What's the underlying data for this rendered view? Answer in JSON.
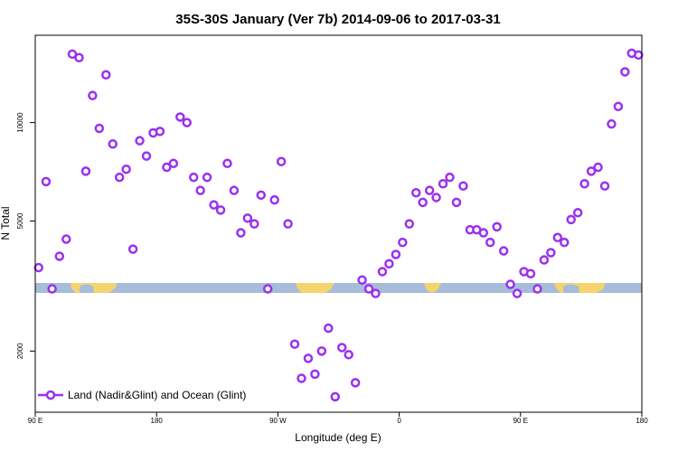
{
  "chart_data": {
    "type": "scatter",
    "title": "35S-30S January (Ver 7b)   2014-09-06 to 2017-03-31",
    "xlabel": "Longitude (deg E)",
    "ylabel": "N Total",
    "x_ticks": [
      {
        "value": 90,
        "label": "90 E"
      },
      {
        "value": 180,
        "label": "180"
      },
      {
        "value": 270,
        "label": "90 W"
      },
      {
        "value": 360,
        "label": "0"
      },
      {
        "value": 450,
        "label": "90 E"
      },
      {
        "value": 540,
        "label": "180"
      }
    ],
    "y_ticks": [
      {
        "value": 2000,
        "label": "2000"
      },
      {
        "value": 5000,
        "label": "5000"
      },
      {
        "value": 10000,
        "label": "10000"
      }
    ],
    "xlim": [
      90,
      540
    ],
    "ylim": [
      1300,
      18500
    ],
    "y_scale": "log",
    "legend": {
      "label": "Land (Nadir&Glint) and Ocean (Glint)",
      "position": "bottom-left"
    },
    "colors": {
      "marker": "#9b30f0",
      "ocean": "#a6bcd9",
      "land": "#f5d46e",
      "frame": "#000000"
    },
    "series": [
      {
        "name": "Land (Nadir&Glint) and Ocean (Glint)",
        "x": [
          92.5,
          98,
          102.5,
          108,
          113,
          117.5,
          122.5,
          127.5,
          132.5,
          137.5,
          142.5,
          147.5,
          152.5,
          157.5,
          162.5,
          167.5,
          172.5,
          177.5,
          182.5,
          187.5,
          192.5,
          197.5,
          202.5,
          207.5,
          212.5,
          217.5,
          222.5,
          227.5,
          232.5,
          237.5,
          242.5,
          247.5,
          252.5,
          257.5,
          262.5,
          267.5,
          272.5,
          277.5,
          282.5,
          287.5,
          292.5,
          297.5,
          302.5,
          307.5,
          312.5,
          317.5,
          322.5,
          327.5,
          332.5,
          337.5,
          342.5,
          347.5,
          352.5,
          357.5,
          362.5,
          367.5,
          372.5,
          377.5,
          382.5,
          387.5,
          392.5,
          397.5,
          402.5,
          407.5,
          412.5,
          417.5,
          422.5,
          427.5,
          432.5,
          437.5,
          442.5,
          447.5,
          452.5,
          457.5,
          462.5,
          467.5,
          472.5,
          477.5,
          482.5,
          487.5,
          492.5,
          497.5,
          502.5,
          507.5,
          512.5,
          517.5,
          522.5,
          527.5,
          532.5,
          537.5
        ],
        "values": [
          3600,
          6600,
          3100,
          3900,
          4400,
          16200,
          15800,
          7100,
          12100,
          9600,
          14000,
          8600,
          6800,
          7200,
          4100,
          8800,
          7900,
          9300,
          9400,
          7300,
          7500,
          10400,
          10000,
          6800,
          6200,
          6800,
          5600,
          5400,
          7500,
          6200,
          4600,
          5100,
          4900,
          6000,
          3100,
          5800,
          7600,
          4900,
          2100,
          1650,
          1900,
          1700,
          2000,
          2350,
          1450,
          2050,
          1950,
          1600,
          3300,
          3100,
          3000,
          3500,
          3700,
          3950,
          4300,
          4900,
          6100,
          5700,
          6200,
          5900,
          6500,
          6800,
          5700,
          6400,
          4700,
          4700,
          4600,
          4300,
          4800,
          4050,
          3200,
          3000,
          3500,
          3450,
          3100,
          3800,
          4000,
          4450,
          4300,
          5050,
          5300,
          6500,
          7100,
          7300,
          6400,
          9900,
          11200,
          14300,
          16300,
          16100
        ]
      }
    ]
  }
}
